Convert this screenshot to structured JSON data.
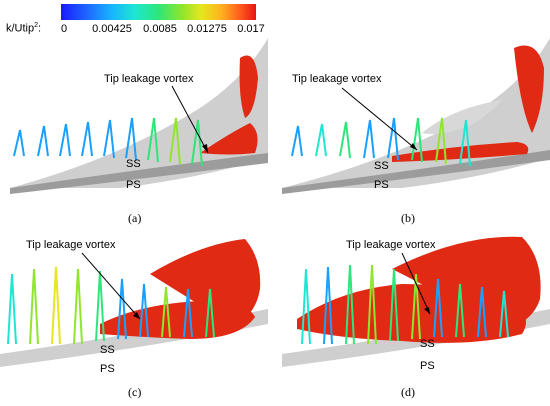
{
  "colorbar": {
    "label": "k/Utip",
    "superscript": "2",
    "suffix": ":",
    "ticks": [
      "0",
      "0.00425",
      "0.0085",
      "0.01275",
      "0.017"
    ]
  },
  "panels": [
    {
      "caption": "(a)",
      "vortex_label": "Tip leakage vortex",
      "ss": "SS",
      "ps": "PS"
    },
    {
      "caption": "(b)",
      "vortex_label": "Tip leakage vortex",
      "ss": "SS",
      "ps": "PS"
    },
    {
      "caption": "(c)",
      "vortex_label": "Tip leakage vortex",
      "ss": "SS",
      "ps": "PS"
    },
    {
      "caption": "(d)",
      "vortex_label": "Tip leakage vortex",
      "ss": "SS",
      "ps": "PS"
    }
  ]
}
